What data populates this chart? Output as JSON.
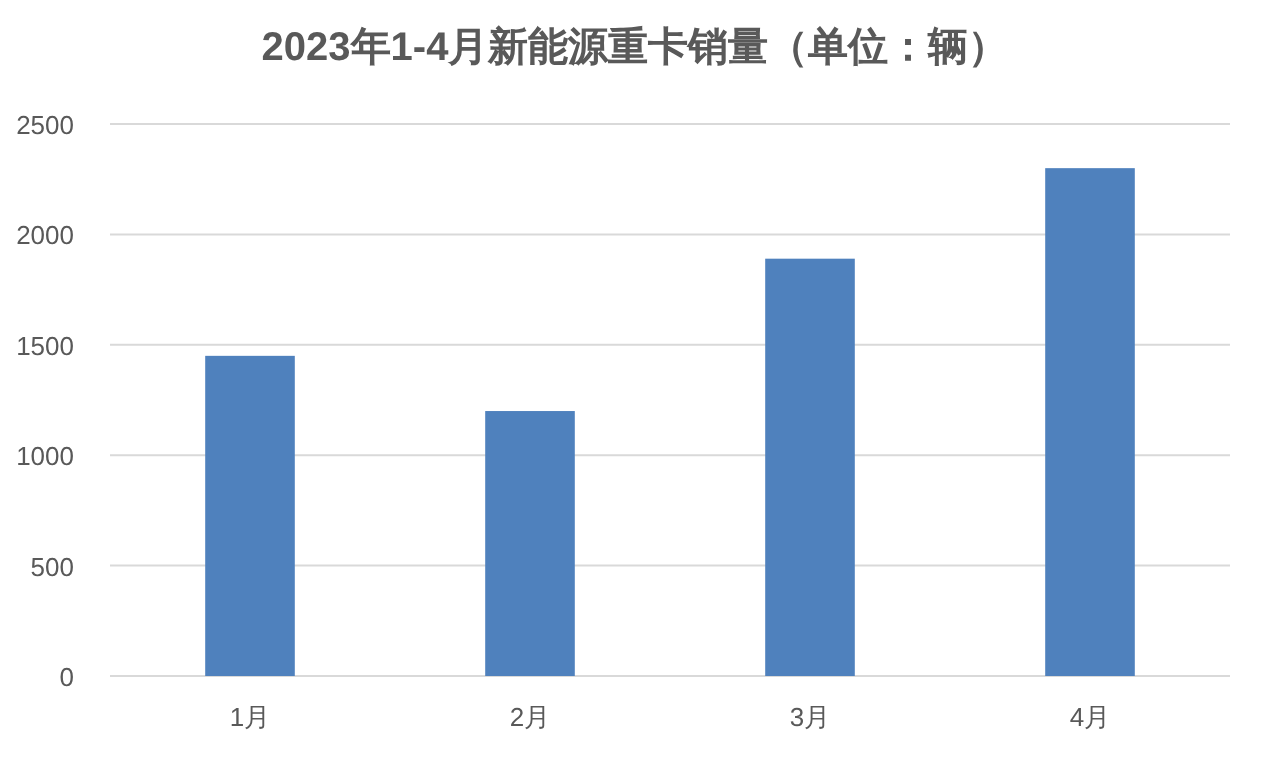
{
  "chart_data": {
    "type": "bar",
    "title": "2023年1-4月新能源重卡销量（单位：辆）",
    "categories": [
      "1月",
      "2月",
      "3月",
      "4月"
    ],
    "values": [
      1450,
      1200,
      1890,
      2300
    ],
    "color": "#4f81bd",
    "ylim": [
      0,
      2500
    ],
    "yticks": [
      0,
      500,
      1000,
      1500,
      2000,
      2500
    ],
    "grid": "y"
  }
}
